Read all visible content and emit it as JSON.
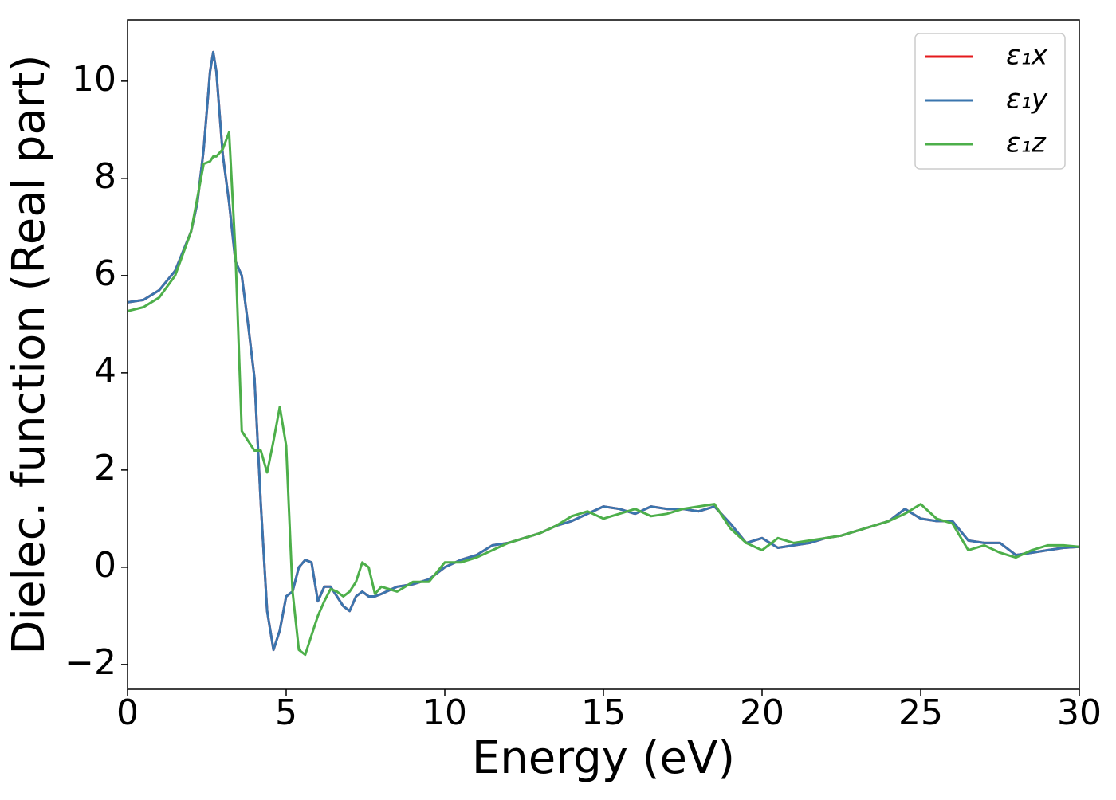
{
  "chart_data": {
    "type": "line",
    "xlabel": "Energy (eV)",
    "ylabel": "Dielec. function (Real part)",
    "x": [
      0,
      0.5,
      1,
      1.5,
      2,
      2.2,
      2.4,
      2.6,
      2.7,
      2.8,
      3,
      3.2,
      3.4,
      3.6,
      3.8,
      4,
      4.2,
      4.4,
      4.6,
      4.8,
      5,
      5.2,
      5.4,
      5.6,
      5.8,
      6,
      6.2,
      6.4,
      6.6,
      6.8,
      7,
      7.2,
      7.4,
      7.6,
      7.8,
      8,
      8.5,
      9,
      9.5,
      10,
      10.5,
      11,
      11.5,
      12,
      12.5,
      13,
      13.5,
      14,
      14.5,
      15,
      15.5,
      16,
      16.5,
      17,
      17.5,
      18,
      18.5,
      19,
      19.5,
      20,
      20.5,
      21,
      21.5,
      22,
      22.5,
      23,
      23.5,
      24,
      24.5,
      25,
      25.5,
      26,
      26.5,
      27,
      27.5,
      28,
      28.5,
      29,
      29.5,
      30
    ],
    "series": [
      {
        "name": "ε₁x",
        "color": "#e41a1c",
        "values": [
          5.45,
          5.5,
          5.7,
          6.1,
          6.9,
          7.5,
          8.6,
          10.2,
          10.6,
          10.2,
          8.5,
          7.5,
          6.3,
          6.0,
          5.0,
          3.9,
          1.3,
          -0.9,
          -1.7,
          -1.3,
          -0.6,
          -0.5,
          0.0,
          0.15,
          0.1,
          -0.7,
          -0.4,
          -0.4,
          -0.6,
          -0.8,
          -0.9,
          -0.6,
          -0.5,
          -0.6,
          -0.6,
          -0.55,
          -0.4,
          -0.35,
          -0.25,
          0.0,
          0.15,
          0.25,
          0.45,
          0.5,
          0.6,
          0.7,
          0.85,
          0.95,
          1.1,
          1.25,
          1.2,
          1.1,
          1.25,
          1.2,
          1.2,
          1.15,
          1.25,
          0.9,
          0.5,
          0.6,
          0.4,
          0.45,
          0.5,
          0.6,
          0.65,
          0.75,
          0.85,
          0.95,
          1.2,
          1.0,
          0.95,
          0.95,
          0.55,
          0.5,
          0.5,
          0.25,
          0.3,
          0.35,
          0.4,
          0.42
        ]
      },
      {
        "name": "ε₁y",
        "color": "#3a75ae",
        "values": [
          5.45,
          5.5,
          5.7,
          6.1,
          6.9,
          7.5,
          8.6,
          10.2,
          10.6,
          10.2,
          8.5,
          7.5,
          6.3,
          6.0,
          5.0,
          3.9,
          1.3,
          -0.9,
          -1.7,
          -1.3,
          -0.6,
          -0.5,
          0.0,
          0.15,
          0.1,
          -0.7,
          -0.4,
          -0.4,
          -0.6,
          -0.8,
          -0.9,
          -0.6,
          -0.5,
          -0.6,
          -0.6,
          -0.55,
          -0.4,
          -0.35,
          -0.25,
          0.0,
          0.15,
          0.25,
          0.45,
          0.5,
          0.6,
          0.7,
          0.85,
          0.95,
          1.1,
          1.25,
          1.2,
          1.1,
          1.25,
          1.2,
          1.2,
          1.15,
          1.25,
          0.9,
          0.5,
          0.6,
          0.4,
          0.45,
          0.5,
          0.6,
          0.65,
          0.75,
          0.85,
          0.95,
          1.2,
          1.0,
          0.95,
          0.95,
          0.55,
          0.5,
          0.5,
          0.25,
          0.3,
          0.35,
          0.4,
          0.42
        ]
      },
      {
        "name": "ε₁z",
        "color": "#4daf4a",
        "values": [
          5.27,
          5.35,
          5.55,
          6.0,
          6.9,
          7.6,
          8.3,
          8.35,
          8.45,
          8.45,
          8.6,
          8.95,
          6.5,
          2.8,
          2.6,
          2.4,
          2.4,
          1.95,
          2.6,
          3.3,
          2.5,
          -0.5,
          -1.7,
          -1.8,
          -1.4,
          -1.0,
          -0.7,
          -0.45,
          -0.5,
          -0.6,
          -0.5,
          -0.3,
          0.1,
          0.0,
          -0.55,
          -0.4,
          -0.5,
          -0.3,
          -0.3,
          0.1,
          0.1,
          0.2,
          0.35,
          0.5,
          0.6,
          0.7,
          0.85,
          1.05,
          1.15,
          1.0,
          1.1,
          1.2,
          1.05,
          1.1,
          1.2,
          1.25,
          1.3,
          0.8,
          0.5,
          0.35,
          0.6,
          0.5,
          0.55,
          0.6,
          0.65,
          0.75,
          0.85,
          0.95,
          1.1,
          1.3,
          1.0,
          0.9,
          0.35,
          0.45,
          0.3,
          0.2,
          0.35,
          0.45,
          0.45,
          0.42
        ]
      }
    ],
    "xlim": [
      0,
      30
    ],
    "xticks": [
      0,
      5,
      10,
      15,
      20,
      25,
      30
    ],
    "ylim": [
      -2.51,
      11.26
    ],
    "yticks": [
      {
        "value": -2,
        "label": "−2"
      },
      0,
      2,
      4,
      6,
      8,
      10
    ],
    "grid": false,
    "legend": "upper right"
  }
}
